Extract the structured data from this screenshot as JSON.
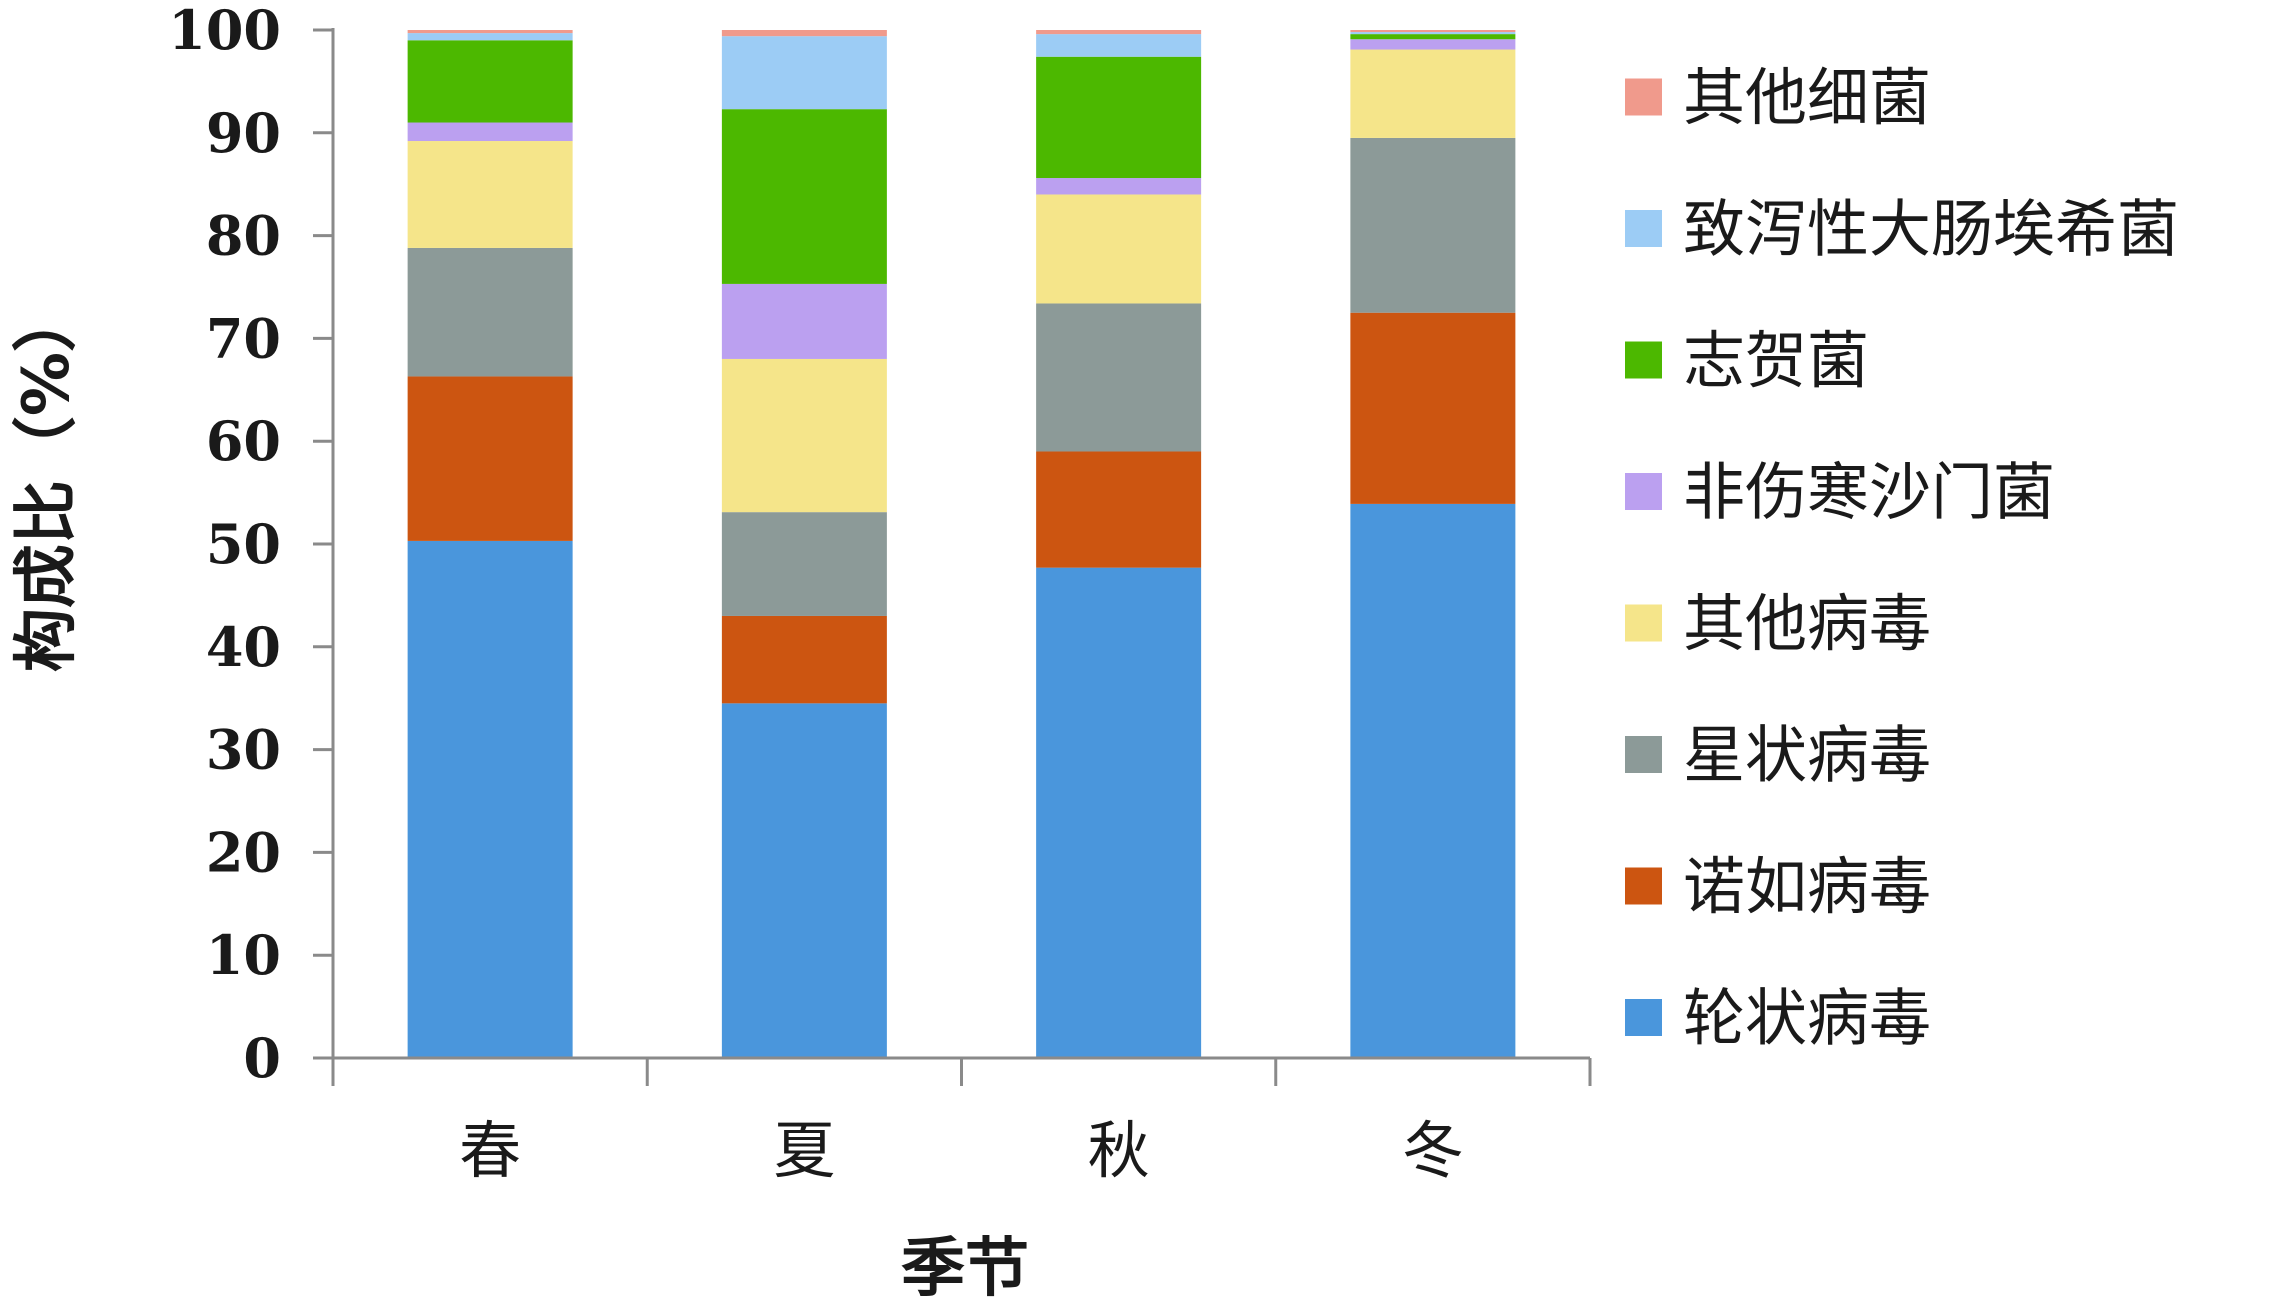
{
  "chart_data": {
    "type": "bar",
    "stacked": true,
    "categories": [
      "春",
      "夏",
      "秋",
      "冬"
    ],
    "xlabel": "季节",
    "ylabel": "构成比（%）",
    "ylim": [
      0,
      100
    ],
    "yticks": [
      0,
      10,
      20,
      30,
      40,
      50,
      60,
      70,
      80,
      90,
      100
    ],
    "legend_position": "right",
    "series": [
      {
        "name": "轮状病毒",
        "color": "#4a96dc",
        "values": [
          50.3,
          34.5,
          47.7,
          53.9
        ]
      },
      {
        "name": "诺如病毒",
        "color": "#cc5511",
        "values": [
          16.0,
          8.5,
          11.3,
          18.6
        ]
      },
      {
        "name": "星状病毒",
        "color": "#8c9a98",
        "values": [
          12.5,
          10.1,
          14.4,
          17.0
        ]
      },
      {
        "name": "其他病毒",
        "color": "#f5e58a",
        "values": [
          10.4,
          14.9,
          10.6,
          8.6
        ]
      },
      {
        "name": "非伤寒沙门菌",
        "color": "#bba0f0",
        "values": [
          1.8,
          7.3,
          1.6,
          1.0
        ]
      },
      {
        "name": "志贺菌",
        "color": "#4cb800",
        "values": [
          8.0,
          17.0,
          11.8,
          0.5
        ]
      },
      {
        "name": "致泻性大肠埃希菌",
        "color": "#9cccf5",
        "values": [
          0.7,
          7.1,
          2.2,
          0.2
        ]
      },
      {
        "name": "其他细菌",
        "color": "#f09a8c",
        "values": [
          0.3,
          0.6,
          0.4,
          0.2
        ]
      }
    ]
  }
}
